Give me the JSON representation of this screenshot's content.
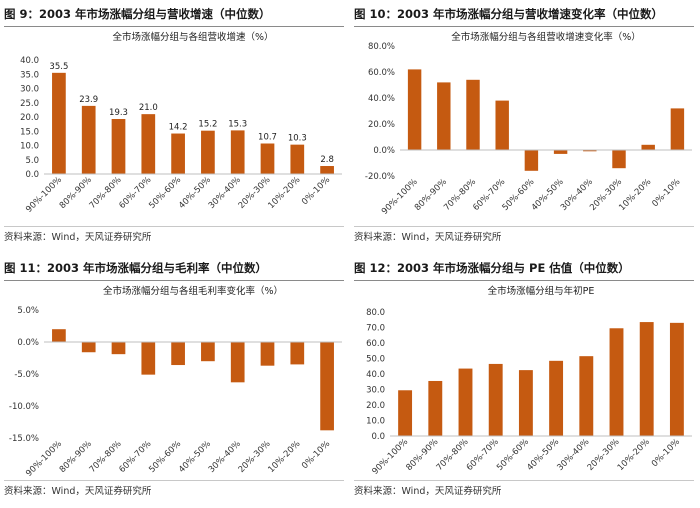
{
  "bar_color": "#c55a11",
  "chart_data": [
    {
      "type": "bar",
      "panel_title": "图 9：2003 年市场涨幅分组与营收增速（中位数）",
      "title": "全市场涨幅分组与各组营收增速（%）",
      "source": "资料来源：Wind，天风证券研究所",
      "categories": [
        "90%-100%",
        "80%-90%",
        "70%-80%",
        "60%-70%",
        "50%-60%",
        "40%-50%",
        "30%-40%",
        "20%-30%",
        "10%-20%",
        "0%-10%"
      ],
      "values": [
        35.5,
        23.9,
        19.3,
        21.0,
        14.2,
        15.2,
        15.3,
        10.7,
        10.3,
        2.8
      ],
      "value_labels": [
        "35.5",
        "23.9",
        "19.3",
        "21.0",
        "14.2",
        "15.2",
        "15.3",
        "10.7",
        "10.3",
        "2.8"
      ],
      "ylim": [
        0,
        40
      ],
      "yticks": [
        0,
        5,
        10,
        15,
        20,
        25,
        30,
        35,
        40
      ],
      "ytick_labels": [
        "0.0",
        "5.0",
        "10.0",
        "15.0",
        "20.0",
        "25.0",
        "30.0",
        "35.0",
        "40.0"
      ],
      "xlabel": "",
      "ylabel": "",
      "grid": false
    },
    {
      "type": "bar",
      "panel_title": "图 10：2003 年市场涨幅分组与营收增速变化率（中位数）",
      "title": "全市场涨幅分组与各组营收增速变化率（%）",
      "source": "资料来源：Wind，天风证券研究所",
      "categories": [
        "90%-100%",
        "80%-90%",
        "70%-80%",
        "60%-70%",
        "50%-60%",
        "40%-50%",
        "30%-40%",
        "20%-30%",
        "10%-20%",
        "0%-10%"
      ],
      "values": [
        62,
        52,
        54,
        38,
        -16,
        -3,
        -1,
        -14,
        4,
        32
      ],
      "ylim": [
        -20,
        80
      ],
      "yticks": [
        -20,
        0,
        20,
        40,
        60,
        80
      ],
      "ytick_labels": [
        "-20.0%",
        "0.0%",
        "20.0%",
        "40.0%",
        "60.0%",
        "80.0%"
      ],
      "xlabel": "",
      "ylabel": "",
      "grid": false
    },
    {
      "type": "bar",
      "panel_title": "图 11：2003 年市场涨幅分组与毛利率（中位数）",
      "title": "全市场涨幅分组与各组毛利率变化率（%）",
      "source": "资料来源：Wind，天风证券研究所",
      "categories": [
        "90%-100%",
        "80%-90%",
        "70%-80%",
        "60%-70%",
        "50%-60%",
        "40%-50%",
        "30%-40%",
        "20%-30%",
        "10%-20%",
        "0%-10%"
      ],
      "values": [
        2.0,
        -1.6,
        -1.9,
        -5.1,
        -3.6,
        -3.0,
        -6.3,
        -3.7,
        -3.5,
        -13.8
      ],
      "ylim": [
        -15,
        5
      ],
      "yticks": [
        -15,
        -10,
        -5,
        0,
        5
      ],
      "ytick_labels": [
        "-15.0%",
        "-10.0%",
        "-5.0%",
        "0.0%",
        "5.0%"
      ],
      "xlabel": "",
      "ylabel": "",
      "grid": false
    },
    {
      "type": "bar",
      "panel_title": "图 12：2003 年市场涨幅分组与 PE 估值（中位数）",
      "title": "全市场涨幅分组与年初PE",
      "source": "资料来源：Wind，天风证券研究所",
      "categories": [
        "90%-100%",
        "80%-90%",
        "70%-80%",
        "60%-70%",
        "50%-60%",
        "40%-50%",
        "30%-40%",
        "20%-30%",
        "10%-20%",
        "0%-10%"
      ],
      "values": [
        29.5,
        35.5,
        43.5,
        46.5,
        42.5,
        48.5,
        51.5,
        69.5,
        73.5,
        73.0
      ],
      "ylim": [
        0,
        80
      ],
      "yticks": [
        0,
        10,
        20,
        30,
        40,
        50,
        60,
        70,
        80
      ],
      "ytick_labels": [
        "0.0",
        "10.0",
        "20.0",
        "30.0",
        "40.0",
        "50.0",
        "60.0",
        "70.0",
        "80.0"
      ],
      "xlabel": "",
      "ylabel": "",
      "grid": false
    }
  ]
}
